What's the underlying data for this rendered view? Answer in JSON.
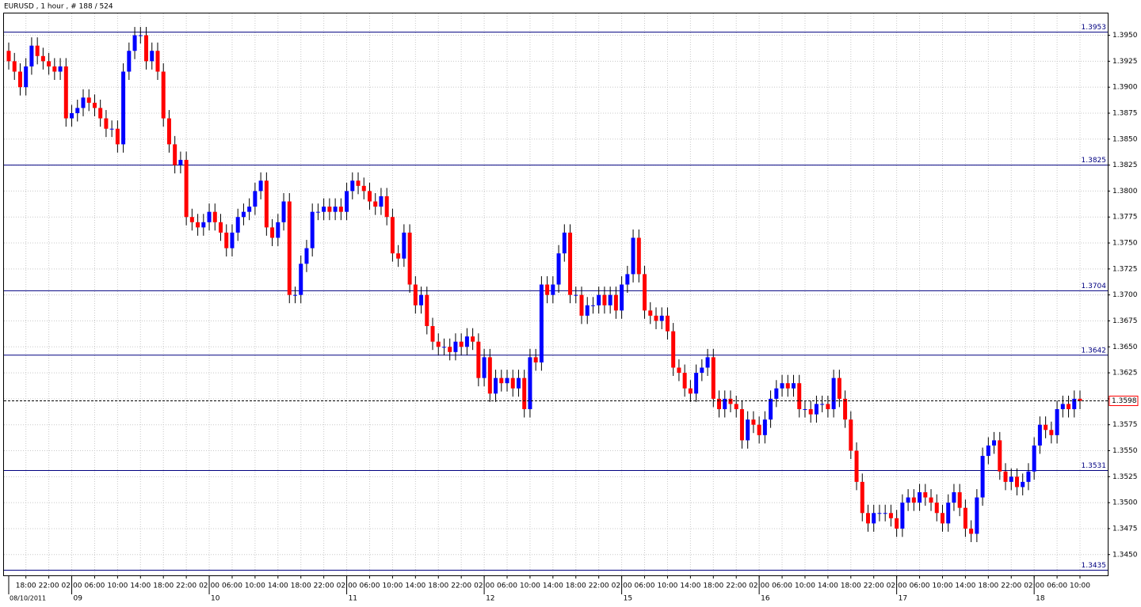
{
  "chart_data": {
    "type": "candlestick",
    "title": "EURUSD , 1 hour , # 188 / 524",
    "bull_color": "#0000ff",
    "bear_color": "#ff0000",
    "wick_color": "#000000",
    "level_color": "#000080",
    "grid": true,
    "ylim": [
      1.343,
      1.3971
    ],
    "yticks": [
      {
        "value": 1.345,
        "label": "1.3450"
      },
      1.3475,
      {
        "value": 1.35,
        "label": "1.3500"
      },
      1.3525,
      {
        "value": 1.355,
        "label": "1.3550"
      },
      1.3575,
      {
        "value": 1.36,
        "label": "1.3600"
      },
      1.3625,
      {
        "value": 1.365,
        "label": "1.3650"
      },
      1.3675,
      {
        "value": 1.37,
        "label": "1.3700"
      },
      1.3725,
      {
        "value": 1.375,
        "label": "1.3750"
      },
      1.3775,
      {
        "value": 1.38,
        "label": "1.3800"
      },
      1.3825,
      {
        "value": 1.385,
        "label": "1.3850"
      },
      1.3875,
      {
        "value": 1.39,
        "label": "1.3900"
      },
      1.3925,
      {
        "value": 1.395,
        "label": "1.3950"
      }
    ],
    "levels": [
      1.3953,
      1.3825,
      1.3704,
      1.3642,
      1.3531,
      1.3435
    ],
    "current_price": 1.3598,
    "categories": [
      null,
      null,
      null,
      "18:00",
      null,
      null,
      null,
      "22:00",
      null,
      null,
      null,
      "02:00",
      null,
      null,
      null,
      "06:00",
      null,
      null,
      null,
      "10:00",
      null,
      null,
      null,
      "14:00",
      null,
      null,
      null,
      "18:00",
      null,
      null,
      null,
      "22:00",
      null,
      null,
      null,
      "02:00",
      null,
      null,
      null,
      "06:00",
      null,
      null,
      null,
      "10:00",
      null,
      null,
      null,
      "14:00",
      null,
      null,
      null,
      "18:00",
      null,
      null,
      null,
      "22:00",
      null,
      null,
      null,
      "02:00",
      null,
      null,
      null,
      "06:00",
      null,
      null,
      null,
      "10:00",
      null,
      null,
      null,
      "14:00",
      null,
      null,
      null,
      "18:00",
      null,
      null,
      null,
      "22:00",
      null,
      null,
      null,
      "02:00",
      null,
      null,
      null,
      "06:00",
      null,
      null,
      null,
      "10:00",
      null,
      null,
      null,
      "14:00",
      null,
      null,
      null,
      "18:00",
      null,
      null,
      null,
      "22:00",
      null,
      null,
      null,
      "02:00",
      null,
      null,
      null,
      "06:00",
      null,
      null,
      null,
      "10:00",
      null,
      null,
      null,
      "14:00",
      null,
      null,
      null,
      "18:00",
      null,
      null,
      null,
      "22:00",
      null,
      null,
      null,
      "02:00",
      null,
      null,
      null,
      "06:00",
      null,
      null,
      null,
      "10:00",
      null,
      null,
      null,
      "14:00",
      null,
      null,
      null,
      "18:00",
      null,
      null,
      null,
      "22:00",
      null,
      null,
      null,
      "02:00",
      null,
      null,
      null,
      "06:00",
      null,
      null,
      null,
      "10:00",
      null,
      null,
      null,
      "14:00",
      null,
      null,
      null,
      "18:00",
      null,
      null,
      null,
      "22:00",
      null,
      null,
      null,
      "02:00",
      null,
      null,
      null,
      "06:00",
      null,
      null,
      null,
      "10:00"
    ],
    "dates": [
      "08/10/2011",
      null,
      null,
      null,
      null,
      null,
      null,
      null,
      null,
      null,
      null,
      "09",
      null,
      null,
      null,
      null,
      null,
      null,
      null,
      null,
      null,
      null,
      null,
      null,
      null,
      null,
      null,
      null,
      null,
      null,
      null,
      null,
      null,
      null,
      null,
      "10",
      null,
      null,
      null,
      null,
      null,
      null,
      null,
      null,
      null,
      null,
      null,
      null,
      null,
      null,
      null,
      null,
      null,
      null,
      null,
      null,
      null,
      null,
      null,
      "11",
      null,
      null,
      null,
      null,
      null,
      null,
      null,
      null,
      null,
      null,
      null,
      null,
      null,
      null,
      null,
      null,
      null,
      null,
      null,
      null,
      null,
      null,
      null,
      "12",
      null,
      null,
      null,
      null,
      null,
      null,
      null,
      null,
      null,
      null,
      null,
      null,
      null,
      null,
      null,
      null,
      null,
      null,
      null,
      null,
      null,
      null,
      null,
      "15",
      null,
      null,
      null,
      null,
      null,
      null,
      null,
      null,
      null,
      null,
      null,
      null,
      null,
      null,
      null,
      null,
      null,
      null,
      null,
      null,
      null,
      null,
      null,
      "16",
      null,
      null,
      null,
      null,
      null,
      null,
      null,
      null,
      null,
      null,
      null,
      null,
      null,
      null,
      null,
      null,
      null,
      null,
      null,
      null,
      null,
      null,
      null,
      "17",
      null,
      null,
      null,
      null,
      null,
      null,
      null,
      null,
      null,
      null,
      null,
      null,
      null,
      null,
      null,
      null,
      null,
      null,
      null,
      null,
      null,
      null,
      null,
      "18",
      null,
      null,
      null,
      null,
      null,
      null,
      null,
      null
    ],
    "open": [
      1.3935,
      1.3925,
      1.3915,
      1.39,
      1.392,
      1.394,
      1.393,
      1.3925,
      1.392,
      1.3915,
      1.392,
      1.387,
      1.3875,
      1.388,
      1.389,
      1.3885,
      1.388,
      1.387,
      1.386,
      1.386,
      1.3845,
      1.3915,
      1.3935,
      1.395,
      1.395,
      1.3925,
      1.3935,
      1.3915,
      1.387,
      1.3845,
      1.3825,
      1.383,
      1.3775,
      1.377,
      1.3765,
      1.377,
      1.378,
      1.377,
      1.376,
      1.3745,
      1.376,
      1.3775,
      1.378,
      1.3785,
      1.38,
      1.381,
      1.3765,
      1.3755,
      1.377,
      1.379,
      1.37,
      1.37,
      1.373,
      1.3745,
      1.378,
      1.378,
      1.3785,
      1.378,
      1.3785,
      1.378,
      1.38,
      1.381,
      1.3805,
      1.38,
      1.379,
      1.3785,
      1.3795,
      1.3775,
      1.374,
      1.3735,
      1.376,
      1.371,
      1.369,
      1.37,
      1.367,
      1.3655,
      1.365,
      1.365,
      1.3645,
      1.3655,
      1.365,
      1.366,
      1.3655,
      1.362,
      1.364,
      1.3605,
      1.362,
      1.3615,
      1.362,
      1.361,
      1.362,
      1.359,
      1.364,
      1.3635,
      1.371,
      1.37,
      1.371,
      1.374,
      1.376,
      1.37,
      1.37,
      1.368,
      1.369,
      1.369,
      1.37,
      1.369,
      1.37,
      1.3685,
      1.371,
      1.372,
      1.3755,
      1.372,
      1.3685,
      1.368,
      1.3675,
      1.368,
      1.3665,
      1.363,
      1.3625,
      1.361,
      1.3605,
      1.3625,
      1.363,
      1.364,
      1.36,
      1.359,
      1.36,
      1.3595,
      1.359,
      1.356,
      1.358,
      1.3575,
      1.3565,
      1.358,
      1.36,
      1.361,
      1.3615,
      1.361,
      1.3615,
      1.359,
      1.359,
      1.3585,
      1.3595,
      1.3595,
      1.359,
      1.362,
      1.36,
      1.358,
      1.355,
      1.352,
      1.349,
      1.348,
      1.349,
      1.349,
      1.349,
      1.3485,
      1.3475,
      1.35,
      1.3505,
      1.35,
      1.351,
      1.3505,
      1.35,
      1.349,
      1.348,
      1.35,
      1.351,
      1.3495,
      1.3475,
      1.347,
      1.3505,
      1.3545,
      1.3555,
      1.356,
      1.353,
      1.352,
      1.3525,
      1.3515,
      1.352,
      1.353,
      1.3555,
      1.3575,
      1.357,
      1.3565,
      1.359,
      1.3595,
      1.359,
      1.36
    ],
    "high": [
      1.3943,
      1.3933,
      1.3923,
      1.3928,
      1.3948,
      1.3948,
      1.3938,
      1.3933,
      1.3928,
      1.3928,
      1.3928,
      1.3883,
      1.3888,
      1.3898,
      1.3898,
      1.3893,
      1.3888,
      1.3878,
      1.3868,
      1.3868,
      1.3923,
      1.3943,
      1.3958,
      1.3958,
      1.3958,
      1.3943,
      1.3943,
      1.3923,
      1.3878,
      1.3853,
      1.3838,
      1.3838,
      1.3783,
      1.3778,
      1.3778,
      1.3788,
      1.3788,
      1.3778,
      1.3768,
      1.3768,
      1.3783,
      1.3788,
      1.3793,
      1.3808,
      1.3818,
      1.3818,
      1.3773,
      1.3778,
      1.3798,
      1.3798,
      1.3708,
      1.3738,
      1.3753,
      1.3788,
      1.3788,
      1.3793,
      1.3793,
      1.3793,
      1.3793,
      1.3808,
      1.3818,
      1.3818,
      1.3813,
      1.3808,
      1.3798,
      1.3803,
      1.3803,
      1.3783,
      1.3748,
      1.3768,
      1.3768,
      1.3718,
      1.3708,
      1.3708,
      1.3678,
      1.3663,
      1.3658,
      1.3658,
      1.3663,
      1.3663,
      1.3668,
      1.3668,
      1.3663,
      1.3648,
      1.3648,
      1.3628,
      1.3628,
      1.3628,
      1.3628,
      1.3628,
      1.3628,
      1.3648,
      1.3648,
      1.3718,
      1.3718,
      1.3718,
      1.3748,
      1.3768,
      1.3768,
      1.3708,
      1.3708,
      1.3698,
      1.3698,
      1.3708,
      1.3708,
      1.3708,
      1.3708,
      1.3718,
      1.3728,
      1.3763,
      1.3763,
      1.3728,
      1.3693,
      1.3688,
      1.3688,
      1.3688,
      1.3673,
      1.3638,
      1.3633,
      1.3618,
      1.3633,
      1.3638,
      1.3648,
      1.3648,
      1.3608,
      1.3608,
      1.3608,
      1.3603,
      1.3598,
      1.3588,
      1.3588,
      1.3583,
      1.3588,
      1.3608,
      1.3618,
      1.3623,
      1.3623,
      1.3623,
      1.3623,
      1.3598,
      1.3598,
      1.3603,
      1.3603,
      1.3603,
      1.3628,
      1.3628,
      1.3608,
      1.3588,
      1.3558,
      1.3528,
      1.3498,
      1.3498,
      1.3498,
      1.3498,
      1.3498,
      1.3493,
      1.3508,
      1.3513,
      1.3513,
      1.3518,
      1.3518,
      1.3513,
      1.3508,
      1.3498,
      1.3508,
      1.3518,
      1.3518,
      1.3503,
      1.3483,
      1.3513,
      1.3553,
      1.3563,
      1.3568,
      1.3568,
      1.3538,
      1.3533,
      1.3533,
      1.3528,
      1.3538,
      1.3563,
      1.3583,
      1.3583,
      1.3578,
      1.3598,
      1.3603,
      1.3603,
      1.3608,
      1.3608
    ],
    "low": [
      1.3917,
      1.3907,
      1.3892,
      1.3892,
      1.3912,
      1.3922,
      1.3917,
      1.3912,
      1.3907,
      1.3907,
      1.3862,
      1.3862,
      1.3867,
      1.3872,
      1.3877,
      1.3872,
      1.3862,
      1.3852,
      1.3852,
      1.3837,
      1.3837,
      1.3907,
      1.3927,
      1.3942,
      1.3917,
      1.3917,
      1.3907,
      1.3862,
      1.3837,
      1.3817,
      1.3817,
      1.3767,
      1.3762,
      1.3757,
      1.3757,
      1.3762,
      1.3762,
      1.3752,
      1.3737,
      1.3737,
      1.3752,
      1.3767,
      1.3772,
      1.3777,
      1.3792,
      1.3757,
      1.3747,
      1.3747,
      1.3762,
      1.3692,
      1.3692,
      1.3692,
      1.3722,
      1.3737,
      1.3772,
      1.3772,
      1.3772,
      1.3772,
      1.3772,
      1.3772,
      1.3792,
      1.3797,
      1.3792,
      1.3782,
      1.3777,
      1.3777,
      1.3767,
      1.3732,
      1.3727,
      1.3727,
      1.3702,
      1.3682,
      1.3682,
      1.3662,
      1.3647,
      1.3642,
      1.3642,
      1.3637,
      1.3637,
      1.3642,
      1.3642,
      1.3647,
      1.3612,
      1.3612,
      1.3597,
      1.3597,
      1.3607,
      1.3607,
      1.3602,
      1.3602,
      1.3582,
      1.3582,
      1.3627,
      1.3627,
      1.3692,
      1.3692,
      1.3702,
      1.3732,
      1.3692,
      1.3692,
      1.3672,
      1.3672,
      1.3682,
      1.3682,
      1.3682,
      1.3682,
      1.3677,
      1.3677,
      1.3702,
      1.3712,
      1.3712,
      1.3677,
      1.3672,
      1.3667,
      1.3667,
      1.3657,
      1.3622,
      1.3617,
      1.3602,
      1.3597,
      1.3597,
      1.3617,
      1.3622,
      1.3592,
      1.3582,
      1.3582,
      1.3587,
      1.3582,
      1.3552,
      1.3552,
      1.3567,
      1.3557,
      1.3557,
      1.3572,
      1.3592,
      1.3602,
      1.3602,
      1.3602,
      1.3582,
      1.3582,
      1.3577,
      1.3577,
      1.3587,
      1.3582,
      1.3582,
      1.3592,
      1.3572,
      1.3542,
      1.3512,
      1.3482,
      1.3472,
      1.3472,
      1.3482,
      1.3482,
      1.3477,
      1.3467,
      1.3467,
      1.3492,
      1.3492,
      1.3492,
      1.3497,
      1.3492,
      1.3482,
      1.3472,
      1.3472,
      1.3492,
      1.3487,
      1.3467,
      1.3462,
      1.3462,
      1.3497,
      1.3537,
      1.3547,
      1.3522,
      1.3512,
      1.3512,
      1.3507,
      1.3507,
      1.3512,
      1.3522,
      1.3547,
      1.3562,
      1.3557,
      1.3557,
      1.3582,
      1.3582,
      1.3582,
      1.359
    ],
    "close": [
      1.3925,
      1.3915,
      1.39,
      1.392,
      1.394,
      1.393,
      1.3925,
      1.392,
      1.3915,
      1.392,
      1.387,
      1.3875,
      1.388,
      1.389,
      1.3885,
      1.388,
      1.387,
      1.386,
      1.386,
      1.3845,
      1.3915,
      1.3935,
      1.395,
      1.395,
      1.3925,
      1.3935,
      1.3915,
      1.387,
      1.3845,
      1.3825,
      1.383,
      1.3775,
      1.377,
      1.3765,
      1.377,
      1.378,
      1.377,
      1.376,
      1.3745,
      1.376,
      1.3775,
      1.378,
      1.3785,
      1.38,
      1.381,
      1.3765,
      1.3755,
      1.377,
      1.379,
      1.37,
      1.37,
      1.373,
      1.3745,
      1.378,
      1.378,
      1.3785,
      1.378,
      1.3785,
      1.378,
      1.38,
      1.381,
      1.3805,
      1.38,
      1.379,
      1.3785,
      1.3795,
      1.3775,
      1.374,
      1.3735,
      1.376,
      1.371,
      1.369,
      1.37,
      1.367,
      1.3655,
      1.365,
      1.365,
      1.3645,
      1.3655,
      1.365,
      1.366,
      1.3655,
      1.362,
      1.364,
      1.3605,
      1.362,
      1.3615,
      1.362,
      1.361,
      1.362,
      1.359,
      1.364,
      1.3635,
      1.371,
      1.37,
      1.371,
      1.374,
      1.376,
      1.37,
      1.37,
      1.368,
      1.369,
      1.369,
      1.37,
      1.369,
      1.37,
      1.3685,
      1.371,
      1.372,
      1.3755,
      1.372,
      1.3685,
      1.368,
      1.3675,
      1.368,
      1.3665,
      1.363,
      1.3625,
      1.361,
      1.3605,
      1.3625,
      1.363,
      1.364,
      1.36,
      1.359,
      1.36,
      1.3595,
      1.359,
      1.356,
      1.358,
      1.3575,
      1.3565,
      1.358,
      1.36,
      1.361,
      1.3615,
      1.361,
      1.3615,
      1.359,
      1.359,
      1.3585,
      1.3595,
      1.3595,
      1.359,
      1.362,
      1.36,
      1.358,
      1.355,
      1.352,
      1.349,
      1.348,
      1.349,
      1.349,
      1.349,
      1.3485,
      1.3475,
      1.35,
      1.3505,
      1.35,
      1.351,
      1.3505,
      1.35,
      1.349,
      1.348,
      1.35,
      1.351,
      1.3495,
      1.3475,
      1.347,
      1.3505,
      1.3545,
      1.3555,
      1.356,
      1.353,
      1.352,
      1.3525,
      1.3515,
      1.352,
      1.353,
      1.3555,
      1.3575,
      1.357,
      1.3565,
      1.359,
      1.3595,
      1.359,
      1.36,
      1.3598
    ]
  }
}
